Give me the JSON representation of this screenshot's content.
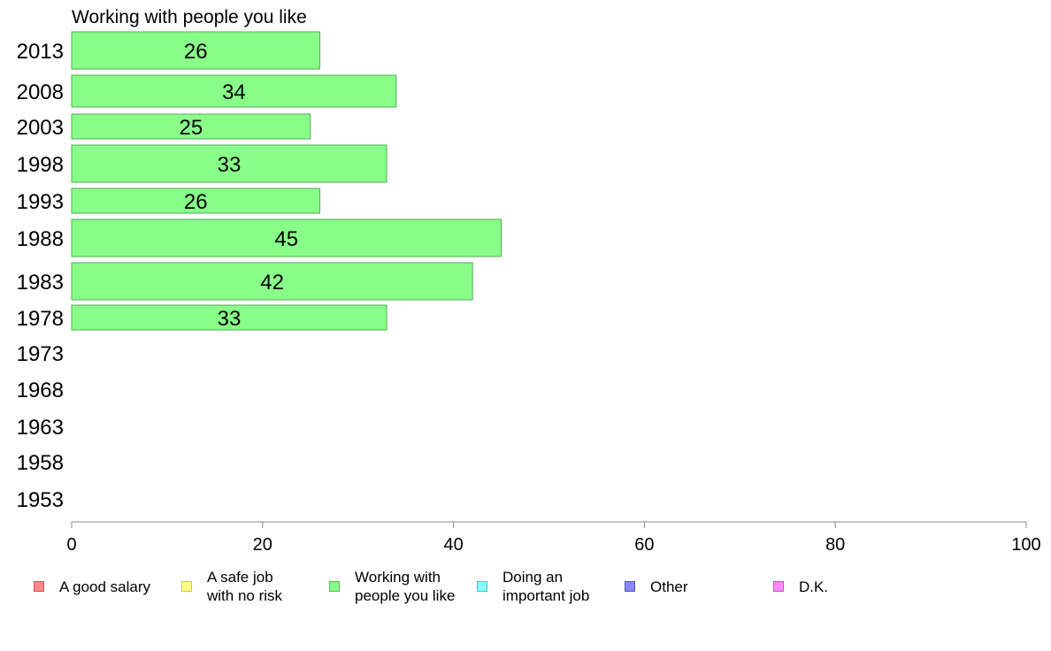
{
  "chart_data": {
    "type": "bar",
    "orientation": "horizontal",
    "title": "Working with people you like",
    "categories": [
      "2013",
      "2008",
      "2003",
      "1998",
      "1993",
      "1988",
      "1983",
      "1978",
      "1973",
      "1968",
      "1963",
      "1958",
      "1953"
    ],
    "series": [
      {
        "name": "Working with people you like",
        "color": "#88ff88",
        "values": [
          26,
          34,
          25,
          33,
          26,
          45,
          42,
          33,
          null,
          null,
          null,
          null,
          null
        ]
      }
    ],
    "data_labels": [
      "26",
      "34",
      "25",
      "33",
      "26",
      "45",
      "42",
      "33",
      "",
      "",
      "",
      "",
      ""
    ],
    "xlim": [
      0,
      100
    ],
    "x_ticks": [
      "0",
      "20",
      "40",
      "60",
      "80",
      "100"
    ],
    "xlabel": "",
    "ylabel": "",
    "grid": false,
    "legend_position": "bottom"
  },
  "legend": {
    "items": [
      {
        "label": "A good salary",
        "color": "#ff8888",
        "border": "#cc5555"
      },
      {
        "label": "A safe job\nwith no risk",
        "color": "#ffff88",
        "border": "#cccc55"
      },
      {
        "label": "Working with\npeople you like",
        "color": "#88ff88",
        "border": "#55bb55"
      },
      {
        "label": "Doing an\nimportant job",
        "color": "#88ffff",
        "border": "#55bbbb"
      },
      {
        "label": "Other",
        "color": "#8888ff",
        "border": "#5555bb"
      },
      {
        "label": "D.K.",
        "color": "#ff88ff",
        "border": "#bb55bb"
      }
    ]
  }
}
